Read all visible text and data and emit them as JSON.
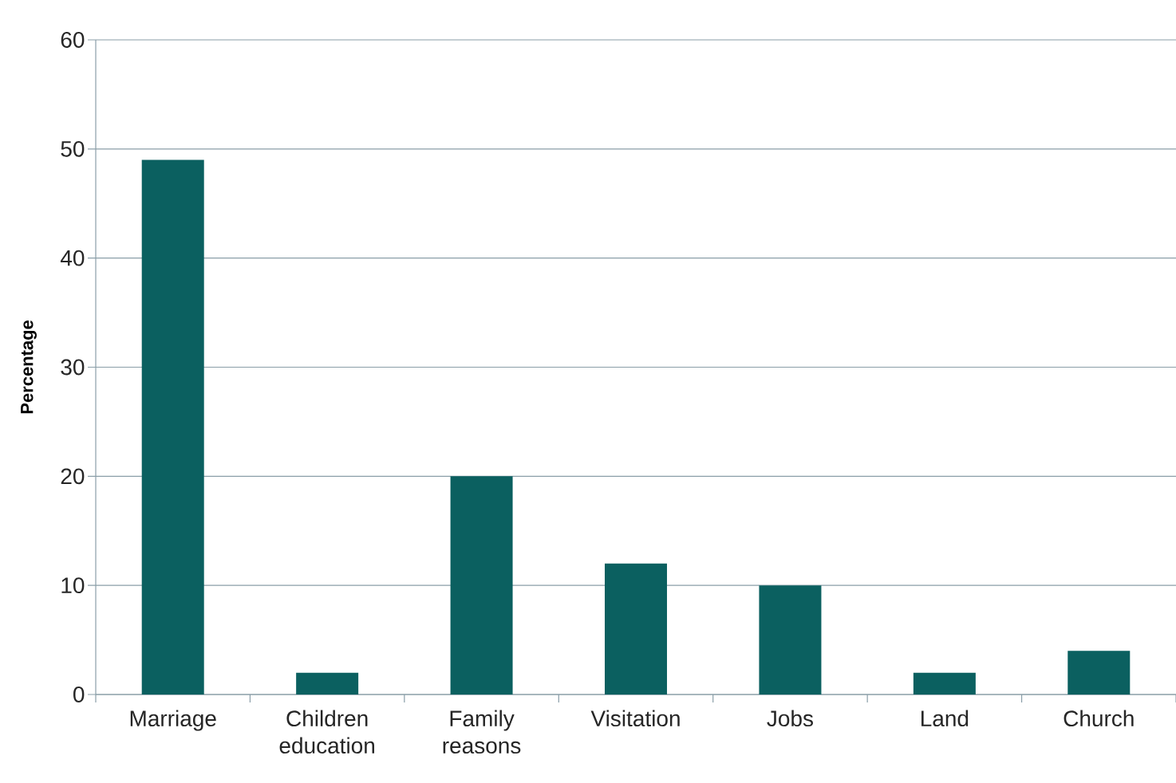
{
  "chart_data": {
    "type": "bar",
    "ylabel": "Percentage",
    "categories": [
      "Marriage",
      "Children education",
      "Family reasons",
      "Visitation",
      "Jobs",
      "Land",
      "Church"
    ],
    "values": [
      49,
      2,
      20,
      12,
      10,
      2,
      4
    ],
    "color": "#0b6060",
    "ylim": [
      0,
      60
    ],
    "yticks": [
      0,
      10,
      20,
      30,
      40,
      50,
      60
    ],
    "grid": "y"
  }
}
